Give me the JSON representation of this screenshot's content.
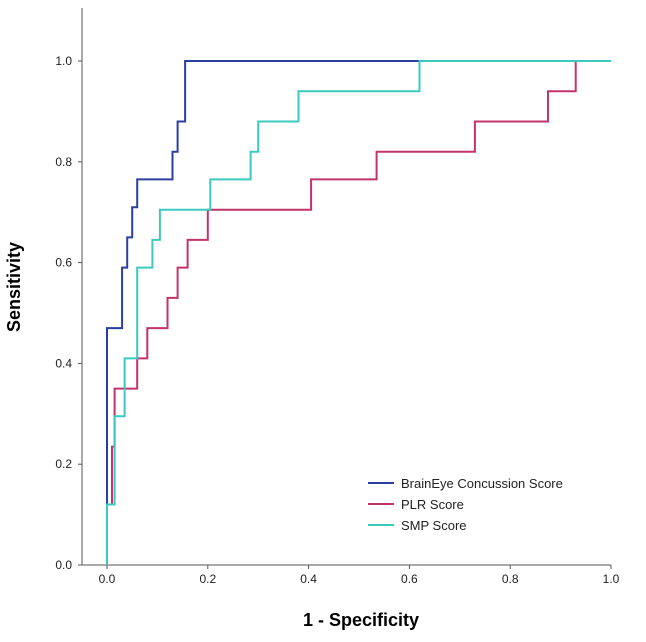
{
  "chart_data": {
    "type": "line",
    "xlabel": "1 - Specificity",
    "ylabel": "Sensitivity",
    "xlim": [
      0.0,
      1.0
    ],
    "ylim": [
      0.0,
      1.0
    ],
    "x_ticks": [
      "0.0",
      "0.2",
      "0.4",
      "0.6",
      "0.8",
      "1.0"
    ],
    "y_ticks": [
      "0.0",
      "0.2",
      "0.4",
      "0.6",
      "0.8",
      "1.0"
    ],
    "grid": false,
    "legend_position": "bottom-right",
    "series": [
      {
        "name": "BrainEye Concussion Score",
        "color": "#2b3f9e",
        "points": [
          [
            0,
            0
          ],
          [
            0,
            0.47
          ],
          [
            0.03,
            0.47
          ],
          [
            0.03,
            0.59
          ],
          [
            0.04,
            0.59
          ],
          [
            0.04,
            0.65
          ],
          [
            0.05,
            0.65
          ],
          [
            0.05,
            0.71
          ],
          [
            0.06,
            0.71
          ],
          [
            0.06,
            0.765
          ],
          [
            0.13,
            0.765
          ],
          [
            0.13,
            0.82
          ],
          [
            0.14,
            0.82
          ],
          [
            0.14,
            0.88
          ],
          [
            0.155,
            0.88
          ],
          [
            0.155,
            1.0
          ],
          [
            1.0,
            1.0
          ]
        ]
      },
      {
        "name": "PLR Score",
        "color": "#c2336b",
        "points": [
          [
            0,
            0
          ],
          [
            0,
            0.12
          ],
          [
            0.01,
            0.12
          ],
          [
            0.01,
            0.235
          ],
          [
            0.015,
            0.235
          ],
          [
            0.015,
            0.35
          ],
          [
            0.06,
            0.35
          ],
          [
            0.06,
            0.41
          ],
          [
            0.08,
            0.41
          ],
          [
            0.08,
            0.47
          ],
          [
            0.12,
            0.47
          ],
          [
            0.12,
            0.53
          ],
          [
            0.14,
            0.53
          ],
          [
            0.14,
            0.59
          ],
          [
            0.16,
            0.59
          ],
          [
            0.16,
            0.645
          ],
          [
            0.2,
            0.645
          ],
          [
            0.2,
            0.705
          ],
          [
            0.405,
            0.705
          ],
          [
            0.405,
            0.765
          ],
          [
            0.535,
            0.765
          ],
          [
            0.535,
            0.82
          ],
          [
            0.73,
            0.82
          ],
          [
            0.73,
            0.88
          ],
          [
            0.875,
            0.88
          ],
          [
            0.875,
            0.94
          ],
          [
            0.93,
            0.94
          ],
          [
            0.93,
            1.0
          ],
          [
            1.0,
            1.0
          ]
        ]
      },
      {
        "name": "SMP Score",
        "color": "#3cc9bf",
        "points": [
          [
            0,
            0
          ],
          [
            0,
            0.12
          ],
          [
            0.015,
            0.12
          ],
          [
            0.015,
            0.295
          ],
          [
            0.035,
            0.295
          ],
          [
            0.035,
            0.41
          ],
          [
            0.06,
            0.41
          ],
          [
            0.06,
            0.59
          ],
          [
            0.09,
            0.59
          ],
          [
            0.09,
            0.645
          ],
          [
            0.105,
            0.645
          ],
          [
            0.105,
            0.705
          ],
          [
            0.205,
            0.705
          ],
          [
            0.205,
            0.765
          ],
          [
            0.285,
            0.765
          ],
          [
            0.285,
            0.82
          ],
          [
            0.3,
            0.82
          ],
          [
            0.3,
            0.88
          ],
          [
            0.38,
            0.88
          ],
          [
            0.38,
            0.94
          ],
          [
            0.62,
            0.94
          ],
          [
            0.62,
            1.0
          ],
          [
            1.0,
            1.0
          ]
        ]
      }
    ]
  }
}
